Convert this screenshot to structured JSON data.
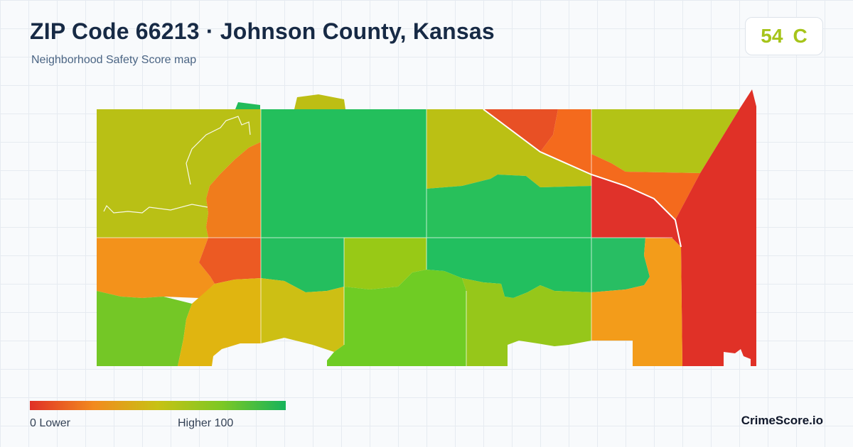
{
  "header": {
    "title": "ZIP Code 66213 · Johnson County, Kansas",
    "subtitle": "Neighborhood Safety Score map"
  },
  "score": {
    "value": "54",
    "grade": "C",
    "color": "#a6c41a"
  },
  "legend": {
    "min_label": "0  Lower",
    "max_label": "Higher  100",
    "gradient_colors": [
      "#e03127",
      "#f28a1e",
      "#c7c214",
      "#7dc824",
      "#16b35a"
    ]
  },
  "map": {
    "region_colors": {
      "northwest": "#b9c015",
      "west-center": "#f07c1c",
      "inner-west": "#ec5a23",
      "north-center": "#23bf5c",
      "north-tab-left": "#22bb5a",
      "north-tab-right": "#bdbe14",
      "north-mid-east": "#bbc014",
      "center-east": "#28c05b",
      "north-east-red": "#e85025",
      "north-east-orange": "#f46a1d",
      "northeast": "#b3c316",
      "east-wedge-orange": "#f46a1d",
      "east-red": "#e03127",
      "east-center-red": "#e0322a",
      "southwest-orange": "#f3921b",
      "center-south-green": "#24be5e",
      "center-south-yellow": "#98c916",
      "south-center-green": "#22bf5f",
      "east-south-green": "#28be63",
      "southwest-green": "#74c726",
      "south-west-yellow": "#e0b510",
      "south-center-yellow": "#cdbf14",
      "south-mid-green": "#6fcc24",
      "south-east-yellow": "#96c71a",
      "south-east-orange": "#f39c1a",
      "far-east-orange": "#f29616"
    }
  },
  "footer": {
    "brand": "CrimeScore.io"
  }
}
